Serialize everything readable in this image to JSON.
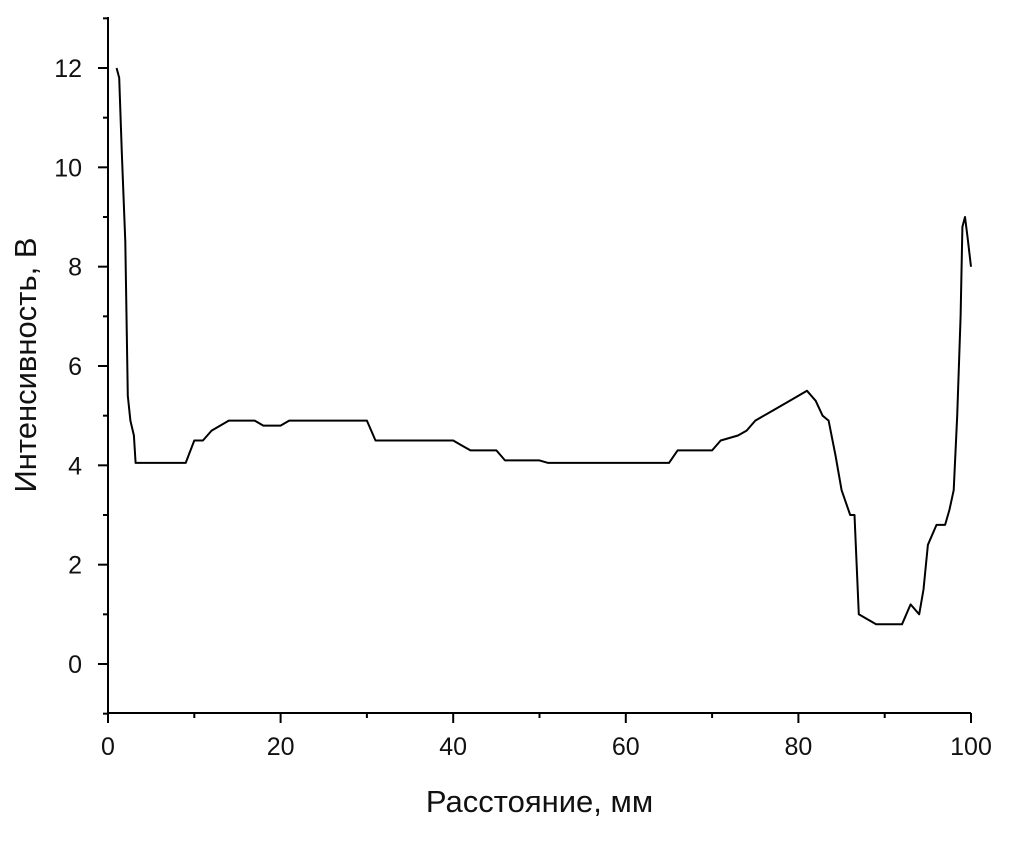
{
  "chart_data": {
    "type": "line",
    "title": "",
    "xlabel": "Расстояние, мм",
    "ylabel": "Интенсивность, В",
    "xlim": [
      0,
      100
    ],
    "ylim": [
      -1,
      13
    ],
    "xticks": [
      0,
      20,
      40,
      60,
      80,
      100
    ],
    "yticks": [
      0,
      2,
      4,
      6,
      8,
      10,
      12
    ],
    "grid": false,
    "legend": "none",
    "line_color": "#000000",
    "series": [
      {
        "x": [
          1,
          1.3,
          1.6,
          2,
          2.3,
          2.6,
          3,
          3.2,
          5,
          7,
          9,
          10,
          11,
          12,
          13,
          14,
          15,
          16,
          17,
          18,
          19,
          20,
          21,
          22,
          25,
          28,
          30,
          31,
          33,
          35,
          37,
          40,
          41,
          42,
          44,
          45,
          46,
          48,
          50,
          51,
          53,
          55,
          58,
          60,
          62,
          64,
          65,
          66,
          68,
          70,
          71,
          73,
          74,
          75,
          77,
          79,
          80,
          81,
          82,
          82.8,
          83.5,
          84.3,
          85,
          86,
          86.5,
          87,
          88,
          89,
          90,
          91,
          92,
          93,
          93.5,
          94,
          94.5,
          95,
          96,
          97,
          97.5,
          98,
          98.4,
          98.8,
          99,
          99.3,
          99.6,
          100
        ],
        "y": [
          12,
          11.8,
          10.3,
          8.5,
          5.4,
          4.9,
          4.6,
          4.05,
          4.05,
          4.05,
          4.05,
          4.5,
          4.5,
          4.7,
          4.8,
          4.9,
          4.9,
          4.9,
          4.9,
          4.8,
          4.8,
          4.8,
          4.9,
          4.9,
          4.9,
          4.9,
          4.9,
          4.5,
          4.5,
          4.5,
          4.5,
          4.5,
          4.4,
          4.3,
          4.3,
          4.3,
          4.1,
          4.1,
          4.1,
          4.05,
          4.05,
          4.05,
          4.05,
          4.05,
          4.05,
          4.05,
          4.05,
          4.3,
          4.3,
          4.3,
          4.5,
          4.6,
          4.7,
          4.9,
          5.1,
          5.3,
          5.4,
          5.5,
          5.3,
          5.0,
          4.9,
          4.2,
          3.5,
          3.0,
          3.0,
          1.0,
          0.9,
          0.8,
          0.8,
          0.8,
          0.8,
          1.2,
          1.1,
          1.0,
          1.5,
          2.4,
          2.8,
          2.8,
          3.1,
          3.5,
          5.0,
          7.0,
          8.8,
          9.0,
          8.6,
          8.0
        ]
      }
    ]
  }
}
